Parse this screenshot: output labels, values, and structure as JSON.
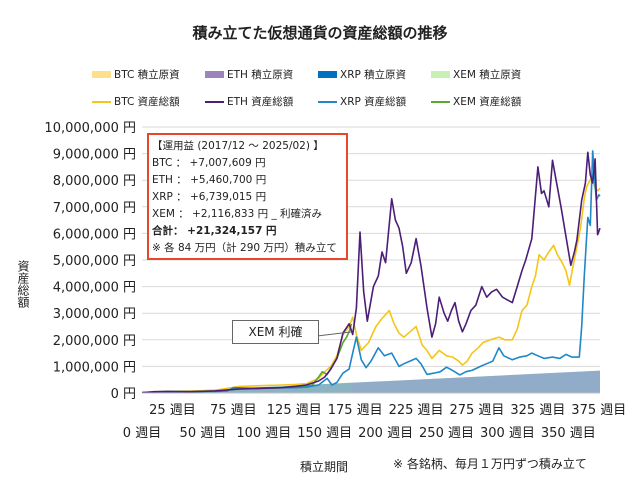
{
  "chart_data": {
    "type": "line",
    "title": "積み立てた仮想通貨の資産総額の推移",
    "xlabel": "積立期間",
    "ylabel": "資産総額",
    "xlim": [
      0,
      376
    ],
    "ylim": [
      0,
      10000000
    ],
    "grid": true,
    "legend_position": "top",
    "y_ticks": [
      "0 円",
      "1,000,000 円",
      "2,000,000 円",
      "3,000,000 円",
      "4,000,000 円",
      "5,000,000 円",
      "6,000,000 円",
      "7,000,000 円",
      "8,000,000 円",
      "9,000,000 円",
      "10,000,000 円"
    ],
    "x_ticks_upper": [
      "25 週目",
      "75 週目",
      "125 週目",
      "175 週目",
      "225 週目",
      "275 週目",
      "325 週目",
      "375 週目"
    ],
    "x_ticks_lower": [
      "0 週目",
      "50 週目",
      "100 週目",
      "150 週目",
      "200 週目",
      "250 週目",
      "300 週目",
      "350 週目"
    ],
    "legend": [
      {
        "name": "BTC  積立原資",
        "kind": "area",
        "color": "#ffe08a"
      },
      {
        "name": "ETH  積立原資",
        "kind": "area",
        "color": "#9d85bb"
      },
      {
        "name": "XRP  積立原資",
        "kind": "area",
        "color": "#0070c0"
      },
      {
        "name": "XEM  積立原資",
        "kind": "area",
        "color": "#c6f0b4"
      },
      {
        "name": "BTC  資産総額",
        "kind": "line",
        "color": "#f5c518"
      },
      {
        "name": "ETH  資産総額",
        "kind": "line",
        "color": "#4b1e78"
      },
      {
        "name": "XRP  資産総額",
        "kind": "line",
        "color": "#1e88c8"
      },
      {
        "name": "XEM  資産総額",
        "kind": "line",
        "color": "#58a832"
      }
    ],
    "principal_series": [
      {
        "name": "BTC  積立原資",
        "color": "#ffe08a",
        "points": [
          [
            0,
            0
          ],
          [
            376,
            840000
          ]
        ]
      },
      {
        "name": "ETH  積立原資",
        "color": "#9d85bb",
        "points": [
          [
            0,
            0
          ],
          [
            376,
            840000
          ]
        ]
      },
      {
        "name": "XEM  積立原資",
        "color": "#c6f0b4",
        "points": [
          [
            0,
            0
          ],
          [
            172,
            400000
          ]
        ]
      },
      {
        "name": "XRP  積立原資",
        "color": "#0070c0",
        "points": [
          [
            0,
            0
          ],
          [
            376,
            840000
          ]
        ]
      }
    ],
    "series": [
      {
        "name": "BTC  資産総額",
        "color": "#f5c518",
        "points": [
          [
            0,
            10000
          ],
          [
            20,
            60000
          ],
          [
            40,
            70000
          ],
          [
            60,
            100000
          ],
          [
            80,
            250000
          ],
          [
            100,
            280000
          ],
          [
            115,
            300000
          ],
          [
            125,
            320000
          ],
          [
            135,
            350000
          ],
          [
            145,
            550000
          ],
          [
            150,
            800000
          ],
          [
            155,
            1000000
          ],
          [
            160,
            1400000
          ],
          [
            165,
            2200000
          ],
          [
            170,
            2500000
          ],
          [
            173,
            2850000
          ],
          [
            176,
            2200000
          ],
          [
            180,
            1600000
          ],
          [
            186,
            1900000
          ],
          [
            192,
            2500000
          ],
          [
            197,
            2800000
          ],
          [
            203,
            3100000
          ],
          [
            207,
            2600000
          ],
          [
            211,
            2250000
          ],
          [
            215,
            2100000
          ],
          [
            220,
            2300000
          ],
          [
            225,
            2500000
          ],
          [
            230,
            1800000
          ],
          [
            234,
            1600000
          ],
          [
            238,
            1300000
          ],
          [
            244,
            1600000
          ],
          [
            250,
            1400000
          ],
          [
            255,
            1350000
          ],
          [
            260,
            1200000
          ],
          [
            263,
            1050000
          ],
          [
            267,
            1200000
          ],
          [
            271,
            1500000
          ],
          [
            276,
            1700000
          ],
          [
            280,
            1900000
          ],
          [
            286,
            2000000
          ],
          [
            293,
            2100000
          ],
          [
            298,
            2000000
          ],
          [
            304,
            2000000
          ],
          [
            308,
            2400000
          ],
          [
            312,
            3100000
          ],
          [
            316,
            3300000
          ],
          [
            320,
            4000000
          ],
          [
            323,
            4400000
          ],
          [
            326,
            5200000
          ],
          [
            330,
            5000000
          ],
          [
            334,
            5300000
          ],
          [
            338,
            5550000
          ],
          [
            341,
            5200000
          ],
          [
            345,
            4900000
          ],
          [
            348,
            4600000
          ],
          [
            351,
            4050000
          ],
          [
            354,
            4800000
          ],
          [
            356,
            5250000
          ],
          [
            360,
            6200000
          ],
          [
            363,
            7300000
          ],
          [
            365,
            7750000
          ],
          [
            369,
            8100000
          ],
          [
            372,
            7700000
          ],
          [
            374,
            7600000
          ],
          [
            376,
            7700000
          ]
        ]
      },
      {
        "name": "XEM  資産総額",
        "color": "#58a832",
        "points": [
          [
            0,
            10000
          ],
          [
            20,
            50000
          ],
          [
            40,
            50000
          ],
          [
            60,
            70000
          ],
          [
            80,
            150000
          ],
          [
            100,
            170000
          ],
          [
            115,
            200000
          ],
          [
            125,
            200000
          ],
          [
            135,
            250000
          ],
          [
            140,
            300000
          ],
          [
            145,
            600000
          ],
          [
            148,
            800000
          ],
          [
            152,
            700000
          ],
          [
            156,
            1000000
          ],
          [
            160,
            1300000
          ],
          [
            165,
            1900000
          ],
          [
            168,
            2100000
          ],
          [
            170,
            2300000
          ],
          [
            172,
            2600000
          ]
        ]
      },
      {
        "name": "XRP  資産総額",
        "color": "#1e88c8",
        "points": [
          [
            0,
            10000
          ],
          [
            20,
            50000
          ],
          [
            40,
            50000
          ],
          [
            60,
            60000
          ],
          [
            70,
            80000
          ],
          [
            75,
            200000
          ],
          [
            90,
            180000
          ],
          [
            110,
            200000
          ],
          [
            125,
            200000
          ],
          [
            135,
            220000
          ],
          [
            145,
            300000
          ],
          [
            152,
            550000
          ],
          [
            156,
            300000
          ],
          [
            160,
            400000
          ],
          [
            165,
            750000
          ],
          [
            170,
            900000
          ],
          [
            173,
            1500000
          ],
          [
            176,
            2100000
          ],
          [
            180,
            1250000
          ],
          [
            184,
            950000
          ],
          [
            188,
            1200000
          ],
          [
            194,
            1700000
          ],
          [
            199,
            1400000
          ],
          [
            205,
            1500000
          ],
          [
            211,
            1000000
          ],
          [
            215,
            1100000
          ],
          [
            220,
            1200000
          ],
          [
            225,
            1300000
          ],
          [
            229,
            1100000
          ],
          [
            234,
            700000
          ],
          [
            240,
            750000
          ],
          [
            245,
            800000
          ],
          [
            250,
            970000
          ],
          [
            255,
            850000
          ],
          [
            261,
            680000
          ],
          [
            266,
            800000
          ],
          [
            271,
            850000
          ],
          [
            277,
            980000
          ],
          [
            283,
            1100000
          ],
          [
            288,
            1200000
          ],
          [
            293,
            1700000
          ],
          [
            297,
            1400000
          ],
          [
            304,
            1250000
          ],
          [
            310,
            1350000
          ],
          [
            316,
            1400000
          ],
          [
            320,
            1500000
          ],
          [
            325,
            1400000
          ],
          [
            330,
            1300000
          ],
          [
            337,
            1350000
          ],
          [
            343,
            1300000
          ],
          [
            348,
            1450000
          ],
          [
            353,
            1350000
          ],
          [
            359,
            1350000
          ],
          [
            361,
            2500000
          ],
          [
            363,
            4350000
          ],
          [
            366,
            6600000
          ],
          [
            368,
            6300000
          ],
          [
            370,
            9100000
          ],
          [
            372,
            7800000
          ],
          [
            373,
            7250000
          ],
          [
            375,
            7450000
          ],
          [
            376,
            7400000
          ]
        ]
      },
      {
        "name": "ETH  資産総額",
        "color": "#4b1e78",
        "points": [
          [
            0,
            10000
          ],
          [
            10,
            50000
          ],
          [
            20,
            60000
          ],
          [
            40,
            50000
          ],
          [
            60,
            80000
          ],
          [
            80,
            150000
          ],
          [
            100,
            180000
          ],
          [
            115,
            200000
          ],
          [
            125,
            250000
          ],
          [
            135,
            300000
          ],
          [
            145,
            450000
          ],
          [
            150,
            600000
          ],
          [
            155,
            900000
          ],
          [
            160,
            1300000
          ],
          [
            165,
            2260000
          ],
          [
            170,
            2600000
          ],
          [
            173,
            2200000
          ],
          [
            176,
            3200000
          ],
          [
            179,
            6050000
          ],
          [
            182,
            3800000
          ],
          [
            185,
            2700000
          ],
          [
            190,
            4000000
          ],
          [
            194,
            4400000
          ],
          [
            197,
            5300000
          ],
          [
            200,
            4900000
          ],
          [
            205,
            7300000
          ],
          [
            208,
            6500000
          ],
          [
            211,
            6200000
          ],
          [
            214,
            5500000
          ],
          [
            217,
            4500000
          ],
          [
            221,
            4900000
          ],
          [
            225,
            5800000
          ],
          [
            229,
            4800000
          ],
          [
            234,
            3200000
          ],
          [
            238,
            2100000
          ],
          [
            241,
            2600000
          ],
          [
            244,
            3600000
          ],
          [
            248,
            3000000
          ],
          [
            251,
            2700000
          ],
          [
            254,
            3100000
          ],
          [
            257,
            3400000
          ],
          [
            260,
            2700000
          ],
          [
            263,
            2300000
          ],
          [
            266,
            2600000
          ],
          [
            270,
            3100000
          ],
          [
            274,
            3300000
          ],
          [
            279,
            4000000
          ],
          [
            283,
            3600000
          ],
          [
            287,
            3800000
          ],
          [
            291,
            3900000
          ],
          [
            296,
            3600000
          ],
          [
            300,
            3500000
          ],
          [
            304,
            3400000
          ],
          [
            308,
            4000000
          ],
          [
            312,
            4600000
          ],
          [
            315,
            5000000
          ],
          [
            320,
            5800000
          ],
          [
            325,
            8500000
          ],
          [
            328,
            7500000
          ],
          [
            330,
            7600000
          ],
          [
            334,
            7000000
          ],
          [
            337,
            8750000
          ],
          [
            340,
            8000000
          ],
          [
            344,
            7000000
          ],
          [
            348,
            5900000
          ],
          [
            352,
            4800000
          ],
          [
            355,
            5300000
          ],
          [
            357,
            5750000
          ],
          [
            361,
            7250000
          ],
          [
            364,
            7900000
          ],
          [
            366,
            9050000
          ],
          [
            368,
            8200000
          ],
          [
            370,
            7900000
          ],
          [
            372,
            8800000
          ],
          [
            374,
            5950000
          ],
          [
            376,
            6200000
          ]
        ]
      }
    ],
    "annotations": {
      "summary_box": {
        "heading": "【運用益 (2017/12 ～ 2025/02) 】",
        "btc": "BTC ： +7,007,609 円",
        "eth": "ETH ： +5,460,700 円",
        "xrp": "XRP ： +6,739,015 円",
        "xem": "XEM ： +2,116,833 円 _ 利確済み",
        "total": "合計： +21,324,157 円",
        "footnote": "※ 各 84 万円（計 290 万円）積み立て"
      },
      "xem_callout": "XEM 利確"
    },
    "note": "※ 各銘柄、毎月１万円ずつ積み立て"
  }
}
